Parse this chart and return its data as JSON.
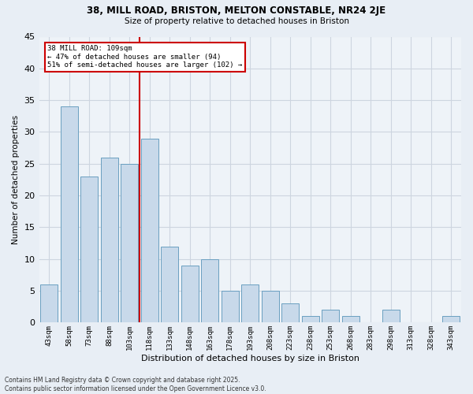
{
  "title1": "38, MILL ROAD, BRISTON, MELTON CONSTABLE, NR24 2JE",
  "title2": "Size of property relative to detached houses in Briston",
  "xlabel": "Distribution of detached houses by size in Briston",
  "ylabel": "Number of detached properties",
  "categories": [
    "43sqm",
    "58sqm",
    "73sqm",
    "88sqm",
    "103sqm",
    "118sqm",
    "133sqm",
    "148sqm",
    "163sqm",
    "178sqm",
    "193sqm",
    "208sqm",
    "223sqm",
    "238sqm",
    "253sqm",
    "268sqm",
    "283sqm",
    "298sqm",
    "313sqm",
    "328sqm",
    "343sqm"
  ],
  "values": [
    6,
    34,
    23,
    26,
    25,
    29,
    12,
    9,
    10,
    5,
    6,
    5,
    3,
    1,
    2,
    1,
    0,
    2,
    0,
    0,
    1
  ],
  "bar_color": "#c8d9ea",
  "bar_edge_color": "#6a9fc0",
  "grid_color": "#cdd5e0",
  "vline_x": 4.5,
  "vline_color": "#cc0000",
  "annotation_text": "38 MILL ROAD: 109sqm\n← 47% of detached houses are smaller (94)\n51% of semi-detached houses are larger (102) →",
  "annotation_box_color": "#ffffff",
  "annotation_box_edge": "#cc0000",
  "ylim": [
    0,
    45
  ],
  "yticks": [
    0,
    5,
    10,
    15,
    20,
    25,
    30,
    35,
    40,
    45
  ],
  "footnote": "Contains HM Land Registry data © Crown copyright and database right 2025.\nContains public sector information licensed under the Open Government Licence v3.0.",
  "bg_color": "#e8eef5",
  "plot_bg_color": "#eef3f8"
}
